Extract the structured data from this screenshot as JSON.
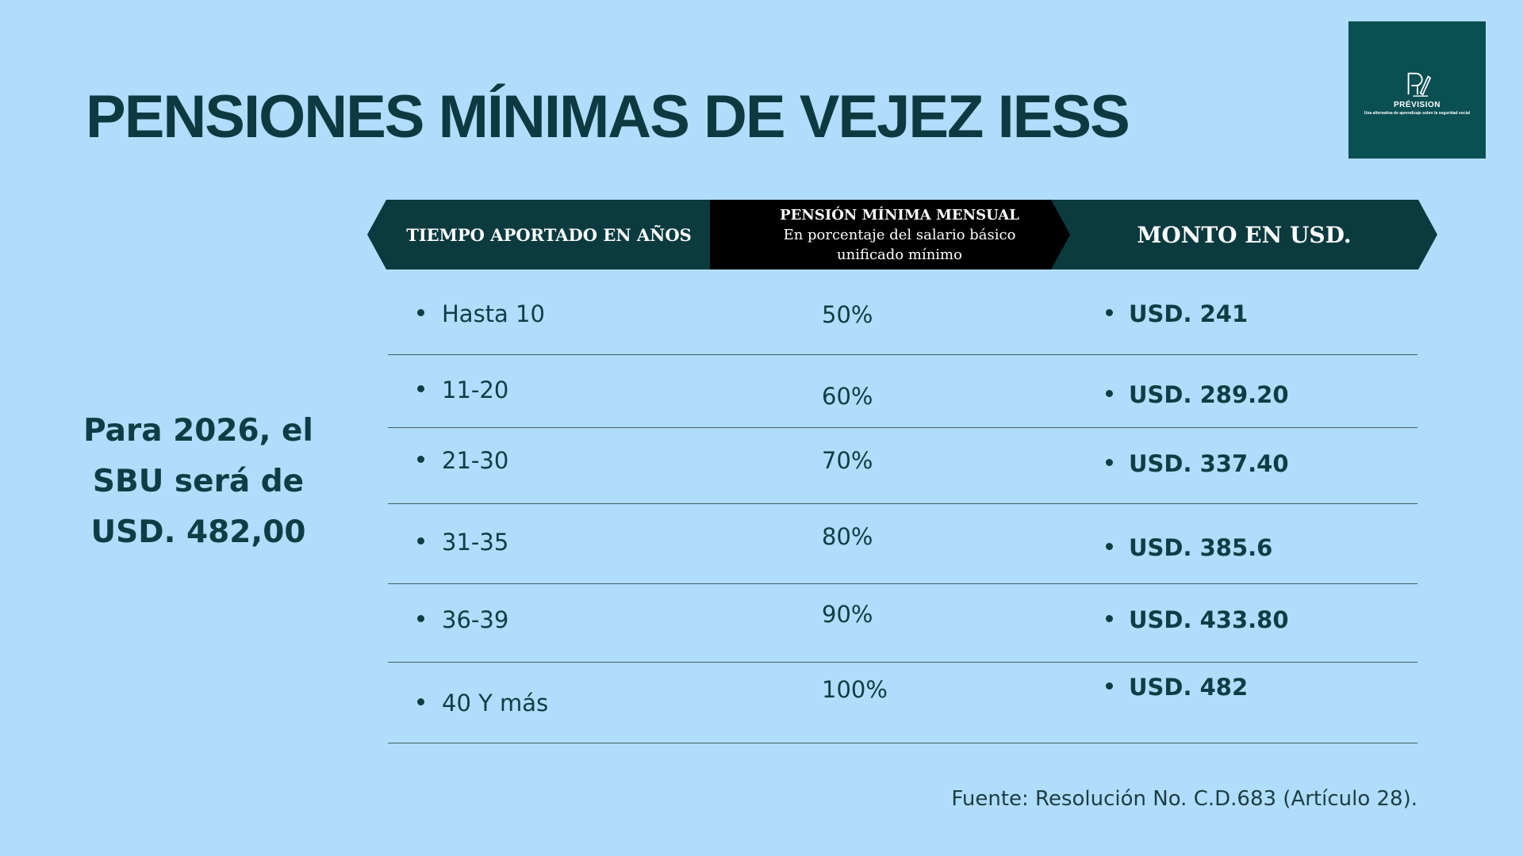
{
  "title": "PENSIONES MÍNIMAS DE VEJEZ IESS",
  "logo": {
    "icon": "pen-pi-logo-icon",
    "name": "PRÉVISION",
    "tagline": "Una alternativa de aprendizaje sobre la seguridad social"
  },
  "side_note": {
    "line1": "Para 2026, el",
    "line2": "SBU será de",
    "line3": "USD. 482,00"
  },
  "table": {
    "headers": {
      "years": "TIEMPO APORTADO EN AÑOS",
      "percent_title": "PENSIÓN MÍNIMA MENSUAL",
      "percent_sub1": "En porcentaje del salario básico",
      "percent_sub2": "unificado mínimo",
      "amount": "MONTO EN USD."
    },
    "rows": [
      {
        "years": "Hasta 10",
        "percent": "50%",
        "amount": "USD. 241"
      },
      {
        "years": "11-20",
        "percent": "60%",
        "amount": "USD. 289.20"
      },
      {
        "years": "21-30",
        "percent": "70%",
        "amount": "USD. 337.40"
      },
      {
        "years": "31-35",
        "percent": "80%",
        "amount": "USD. 385.6"
      },
      {
        "years": "36-39",
        "percent": "90%",
        "amount": "USD. 433.80"
      },
      {
        "years": "40 Y más",
        "percent": "100%",
        "amount": "USD. 482"
      }
    ]
  },
  "source": "Fuente: Resolución No. C.D.683 (Artículo 28).",
  "colors": {
    "background": "#b1ddfc",
    "header_dark": "#0b3a3f",
    "header_black": "#000000",
    "text": "#0f3d45",
    "logo_bg": "#0a4f52"
  }
}
